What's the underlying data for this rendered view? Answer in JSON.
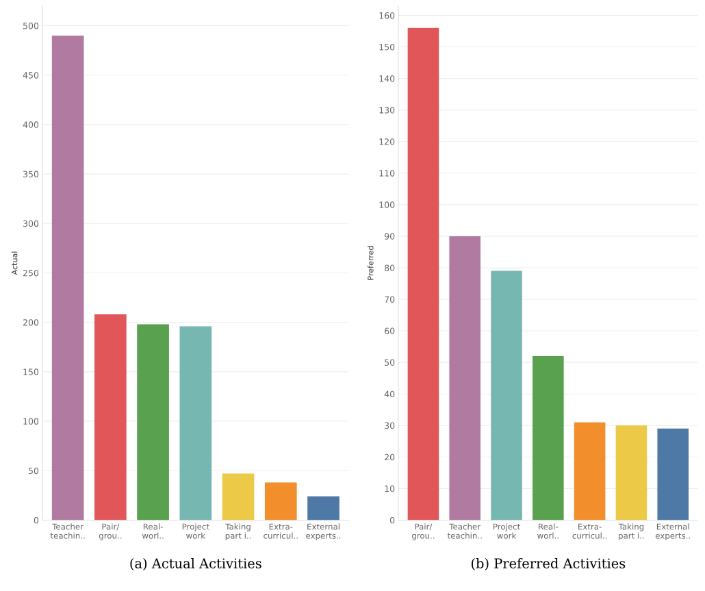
{
  "chart_data": [
    {
      "type": "bar",
      "title": "(a) Actual Activities",
      "ylabel": "Actual",
      "categories": [
        "Teacher\nteachin..",
        "Pair/\ngrou..",
        "Real-\nworl..",
        "Project\nwork",
        "Taking\npart i..",
        "Extra-\ncurricul..",
        "External\nexperts.."
      ],
      "values": [
        490,
        208,
        198,
        196,
        47,
        38,
        24
      ],
      "colors": [
        "#b07aa1",
        "#e15759",
        "#59a14f",
        "#76b7b2",
        "#edc948",
        "#f28e2b",
        "#4e79a7"
      ],
      "ylim": [
        0,
        520
      ],
      "yticks": [
        0,
        50,
        100,
        150,
        200,
        250,
        300,
        350,
        400,
        450,
        500
      ],
      "grid": "y"
    },
    {
      "type": "bar",
      "title": "(b) Preferred Activities",
      "ylabel": "Preferred",
      "categories": [
        "Pair/\ngrou..",
        "Teacher\nteachin..",
        "Project\nwork",
        "Real-\nworl..",
        "Extra-\ncurricul..",
        "Taking\npart i..",
        "External\nexperts.."
      ],
      "values": [
        156,
        90,
        79,
        52,
        31,
        30,
        29
      ],
      "colors": [
        "#e15759",
        "#b07aa1",
        "#76b7b2",
        "#59a14f",
        "#f28e2b",
        "#edc948",
        "#4e79a7"
      ],
      "ylim": [
        0,
        163
      ],
      "yticks": [
        0,
        10,
        20,
        30,
        40,
        50,
        60,
        70,
        80,
        90,
        100,
        110,
        120,
        130,
        140,
        150,
        160
      ],
      "grid": "y"
    }
  ]
}
